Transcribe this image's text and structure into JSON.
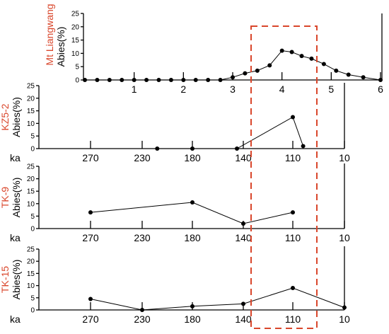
{
  "colors": {
    "site_label": "#d9462b",
    "highlight_box": "#d9462b"
  },
  "chart_data": [
    {
      "type": "line",
      "site": "Mt Liangwang",
      "ylabel": "Abies(%)",
      "yticks": [
        0,
        5,
        10,
        15,
        20,
        25
      ],
      "xticks": [
        1,
        2,
        3,
        4,
        5,
        6
      ],
      "xlim": [
        0,
        6
      ],
      "ylim": [
        0,
        25
      ],
      "x": [
        0,
        0.25,
        0.5,
        0.75,
        1,
        1.25,
        1.5,
        1.75,
        2,
        2.25,
        2.5,
        2.75,
        3,
        3.25,
        3.5,
        3.75,
        4,
        4.2,
        4.4,
        4.6,
        4.85,
        5.1,
        5.35,
        5.65,
        6
      ],
      "y": [
        0,
        0,
        0,
        0,
        0,
        0,
        0,
        0,
        0,
        0,
        0,
        0,
        1,
        2.5,
        3.5,
        5.5,
        11,
        10.5,
        9,
        8,
        6,
        3.5,
        2,
        1,
        0
      ]
    },
    {
      "type": "line",
      "site": "KZ5-2",
      "ylabel": "Abies(%)",
      "xunit": "ka",
      "yticks": [
        0,
        5,
        10,
        15,
        20,
        25
      ],
      "xticks": [
        270,
        230,
        180,
        140,
        110,
        10
      ],
      "ylim": [
        0,
        25
      ],
      "x": [
        215,
        180,
        145,
        110,
        90
      ],
      "y": [
        0,
        0,
        0,
        12.5,
        1
      ]
    },
    {
      "type": "line",
      "site": "TK-9",
      "ylabel": "Abies(%)",
      "xunit": "ka",
      "yticks": [
        0,
        5,
        10,
        15,
        20,
        25
      ],
      "xticks": [
        270,
        230,
        180,
        140,
        110,
        10
      ],
      "ylim": [
        0,
        25
      ],
      "x": [
        270,
        180,
        140,
        110
      ],
      "y": [
        6.5,
        10.5,
        2,
        6.5
      ]
    },
    {
      "type": "line",
      "site": "TK-15",
      "ylabel": "Abies(%)",
      "xunit": "ka",
      "yticks": [
        0,
        5,
        10,
        15,
        20,
        25
      ],
      "xticks": [
        270,
        230,
        180,
        140,
        110,
        10
      ],
      "ylim": [
        0,
        25
      ],
      "x": [
        270,
        230,
        180,
        140,
        110,
        10
      ],
      "y": [
        4.5,
        0,
        1.5,
        2.5,
        9,
        1
      ]
    }
  ]
}
